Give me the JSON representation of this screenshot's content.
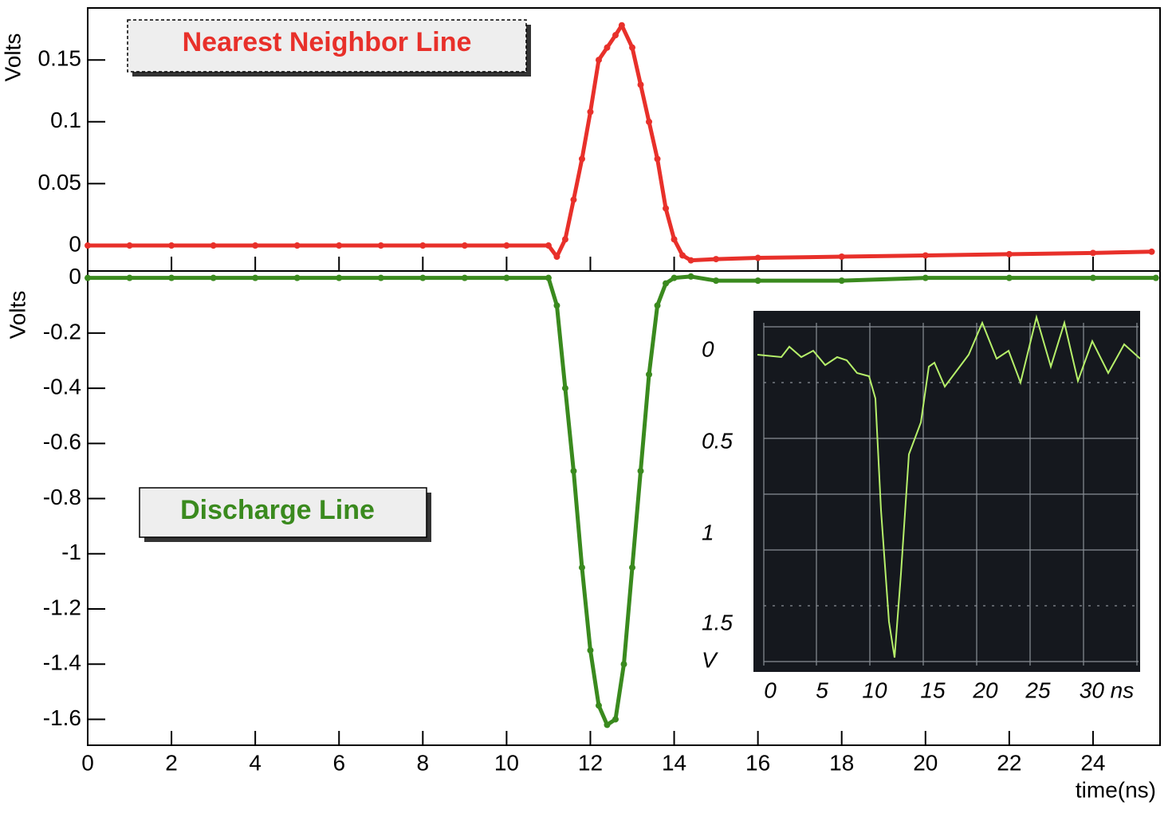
{
  "chart_data": [
    {
      "type": "line",
      "ylabel": "Volts",
      "annotation": "Nearest Neighbor Line",
      "color": "#e8302a",
      "xlim": [
        0,
        25.6
      ],
      "ylim": [
        -0.0206,
        0.192
      ],
      "yticks": [
        0,
        0.05,
        0.1,
        0.15
      ],
      "x": [
        0,
        1,
        2,
        3,
        4,
        5,
        6,
        7,
        8,
        9,
        10,
        11,
        11.2,
        11.4,
        11.6,
        11.8,
        12,
        12.2,
        12.4,
        12.6,
        12.75,
        13,
        13.2,
        13.4,
        13.6,
        13.8,
        14,
        14.2,
        14.4,
        15,
        16,
        18,
        20,
        22,
        24,
        25.4
      ],
      "values": [
        0,
        0,
        0,
        0,
        0,
        0,
        0,
        0,
        0,
        0,
        0,
        0,
        -0.009,
        0.005,
        0.037,
        0.07,
        0.108,
        0.15,
        0.16,
        0.17,
        0.178,
        0.16,
        0.13,
        0.1,
        0.07,
        0.03,
        0.005,
        -0.008,
        -0.012,
        -0.011,
        -0.01,
        -0.009,
        -0.008,
        -0.007,
        -0.006,
        -0.005
      ]
    },
    {
      "type": "line",
      "ylabel": "Volts",
      "xlabel": "time(ns)",
      "annotation": "Discharge Line",
      "color": "#3a8a1e",
      "xlim": [
        0,
        25.6
      ],
      "ylim": [
        -1.694,
        0.025
      ],
      "yticks": [
        0,
        -0.2,
        -0.4,
        -0.6,
        -0.8,
        -1,
        -1.2,
        -1.4,
        -1.6
      ],
      "xticks": [
        0,
        2,
        4,
        6,
        8,
        10,
        12,
        14,
        16,
        18,
        20,
        22,
        24
      ],
      "x": [
        0,
        1,
        2,
        3,
        4,
        5,
        6,
        7,
        8,
        9,
        10,
        11,
        11.2,
        11.4,
        11.6,
        11.8,
        12,
        12.2,
        12.4,
        12.6,
        12.8,
        13,
        13.2,
        13.4,
        13.6,
        13.8,
        14,
        14.4,
        15,
        16,
        18,
        20,
        22,
        24,
        25.5
      ],
      "values": [
        0,
        0,
        0,
        0,
        0,
        0,
        0,
        0,
        0,
        0,
        0,
        0,
        -0.1,
        -0.4,
        -0.7,
        -1.05,
        -1.35,
        -1.55,
        -1.62,
        -1.6,
        -1.4,
        -1.05,
        -0.7,
        -0.35,
        -0.1,
        -0.02,
        0,
        0.005,
        -0.01,
        -0.01,
        -0.01,
        0,
        0,
        0,
        0
      ]
    }
  ],
  "inset": {
    "y_labels": [
      "0",
      "0.5",
      "1",
      "1.5",
      "V"
    ],
    "x_labels": [
      "0",
      "5",
      "10",
      "15",
      "20",
      "25",
      "30 ns"
    ]
  }
}
